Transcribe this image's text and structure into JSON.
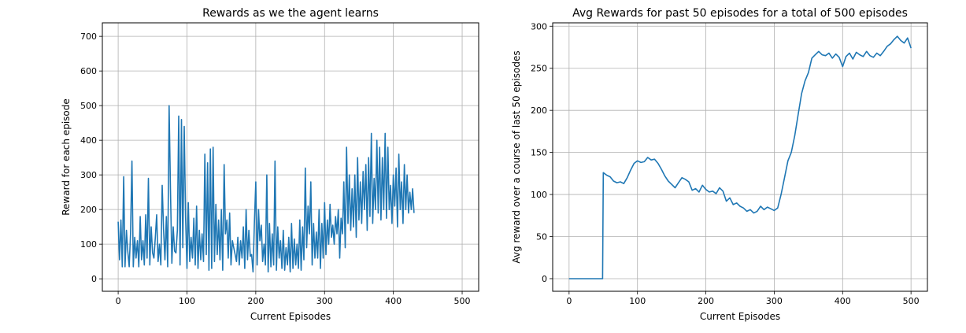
{
  "chart_data": [
    {
      "type": "line",
      "title": "Rewards as we the agent learns",
      "xlabel": "Current Episodes",
      "ylabel": "Reward for each episode",
      "xlim": [
        -23,
        524
      ],
      "ylim": [
        -36,
        739
      ],
      "xticks": [
        0,
        100,
        200,
        300,
        400,
        500
      ],
      "yticks": [
        0,
        100,
        200,
        300,
        400,
        500,
        600,
        700
      ],
      "grid": true,
      "color": "#1f77b4",
      "series": [
        {
          "x_start": 0,
          "x_step": 2,
          "values": [
            165,
            55,
            170,
            35,
            295,
            35,
            140,
            80,
            35,
            130,
            340,
            35,
            120,
            60,
            110,
            35,
            180,
            55,
            110,
            40,
            185,
            60,
            290,
            40,
            150,
            75,
            60,
            120,
            185,
            50,
            100,
            40,
            270,
            140,
            55,
            180,
            35,
            500,
            260,
            45,
            150,
            80,
            75,
            140,
            470,
            40,
            460,
            90,
            440,
            180,
            30,
            220,
            50,
            120,
            60,
            175,
            40,
            210,
            30,
            140,
            55,
            130,
            50,
            360,
            70,
            335,
            25,
            375,
            30,
            380,
            50,
            215,
            70,
            170,
            55,
            200,
            25,
            330,
            130,
            170,
            60,
            190,
            40,
            110,
            90,
            70,
            50,
            120,
            40,
            110,
            60,
            150,
            30,
            200,
            55,
            140,
            65,
            70,
            20,
            160,
            280,
            40,
            200,
            110,
            155,
            50,
            100,
            40,
            300,
            20,
            160,
            35,
            130,
            40,
            340,
            25,
            150,
            60,
            110,
            30,
            140,
            25,
            90,
            40,
            120,
            20,
            160,
            30,
            115,
            40,
            100,
            30,
            170,
            25,
            150,
            55,
            320,
            90,
            210,
            130,
            280,
            40,
            160,
            60,
            135,
            60,
            200,
            30,
            160,
            60,
            220,
            70,
            170,
            100,
            215,
            120,
            155,
            100,
            180,
            130,
            200,
            60,
            175,
            130,
            280,
            90,
            380,
            160,
            300,
            140,
            260,
            150,
            300,
            120,
            350,
            170,
            280,
            160,
            310,
            200,
            330,
            140,
            350,
            180,
            420,
            160,
            290,
            200,
            400,
            190,
            380,
            170,
            350,
            200,
            420,
            175,
            380,
            200,
            270,
            160,
            300,
            210,
            320,
            150,
            360,
            200,
            280,
            160,
            330,
            200,
            300,
            190,
            250,
            200,
            260,
            190
          ]
        }
      ]
    },
    {
      "type": "line",
      "title": "Avg Rewards for past 50 episodes for a total of 500 episodes",
      "xlabel": "Current Episodes",
      "ylabel": "Avg reward over a course of last 50 episodes",
      "xlim": [
        -24,
        524
      ],
      "ylim": [
        -15,
        304
      ],
      "xticks": [
        0,
        100,
        200,
        300,
        400,
        500
      ],
      "yticks": [
        0,
        50,
        100,
        150,
        200,
        250,
        300
      ],
      "grid": true,
      "color": "#1f77b4",
      "series": [
        {
          "points": [
            [
              0,
              0
            ],
            [
              49,
              0
            ],
            [
              50,
              126
            ],
            [
              55,
              123
            ],
            [
              60,
              121
            ],
            [
              65,
              116
            ],
            [
              70,
              114
            ],
            [
              75,
              115
            ],
            [
              80,
              113
            ],
            [
              85,
              120
            ],
            [
              90,
              129
            ],
            [
              95,
              137
            ],
            [
              100,
              140
            ],
            [
              105,
              138
            ],
            [
              110,
              139
            ],
            [
              115,
              144
            ],
            [
              120,
              141
            ],
            [
              125,
              142
            ],
            [
              130,
              137
            ],
            [
              135,
              130
            ],
            [
              140,
              122
            ],
            [
              145,
              116
            ],
            [
              150,
              112
            ],
            [
              155,
              108
            ],
            [
              160,
              114
            ],
            [
              165,
              120
            ],
            [
              170,
              118
            ],
            [
              175,
              115
            ],
            [
              180,
              105
            ],
            [
              185,
              107
            ],
            [
              190,
              103
            ],
            [
              195,
              111
            ],
            [
              200,
              106
            ],
            [
              205,
              103
            ],
            [
              210,
              104
            ],
            [
              215,
              101
            ],
            [
              220,
              108
            ],
            [
              225,
              104
            ],
            [
              230,
              92
            ],
            [
              235,
              96
            ],
            [
              240,
              88
            ],
            [
              245,
              90
            ],
            [
              250,
              86
            ],
            [
              255,
              84
            ],
            [
              260,
              80
            ],
            [
              265,
              82
            ],
            [
              270,
              78
            ],
            [
              275,
              80
            ],
            [
              280,
              86
            ],
            [
              285,
              82
            ],
            [
              290,
              85
            ],
            [
              295,
              83
            ],
            [
              300,
              81
            ],
            [
              305,
              84
            ],
            [
              310,
              100
            ],
            [
              315,
              120
            ],
            [
              320,
              140
            ],
            [
              325,
              150
            ],
            [
              330,
              170
            ],
            [
              335,
              195
            ],
            [
              340,
              220
            ],
            [
              345,
              235
            ],
            [
              350,
              245
            ],
            [
              355,
              262
            ],
            [
              360,
              266
            ],
            [
              365,
              270
            ],
            [
              370,
              266
            ],
            [
              375,
              265
            ],
            [
              380,
              268
            ],
            [
              385,
              262
            ],
            [
              390,
              267
            ],
            [
              395,
              263
            ],
            [
              400,
              252
            ],
            [
              405,
              264
            ],
            [
              410,
              268
            ],
            [
              415,
              261
            ],
            [
              420,
              269
            ],
            [
              425,
              266
            ],
            [
              430,
              264
            ],
            [
              435,
              270
            ],
            [
              440,
              265
            ],
            [
              445,
              263
            ],
            [
              450,
              268
            ],
            [
              455,
              265
            ],
            [
              460,
              270
            ],
            [
              465,
              276
            ],
            [
              470,
              279
            ],
            [
              475,
              284
            ],
            [
              480,
              288
            ],
            [
              485,
              283
            ],
            [
              490,
              280
            ],
            [
              495,
              286
            ],
            [
              500,
              274
            ]
          ]
        }
      ]
    }
  ]
}
